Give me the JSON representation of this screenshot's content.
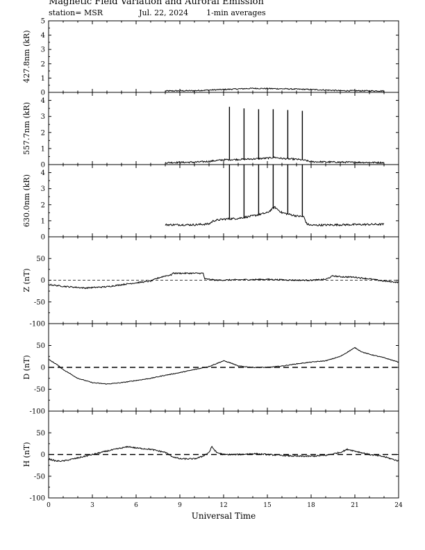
{
  "header": {
    "title": "Magnetic Field Variation and Auroral Emission",
    "station": "station= MSR",
    "date": "Jul.  22, 2024",
    "averaging": "1-min averages"
  },
  "colors": {
    "line": "#000000",
    "background": "#ffffff"
  },
  "chart_data": [
    {
      "type": "line",
      "ylabel": "427.8nm (kR)",
      "ylim": [
        0,
        5
      ],
      "yticks": [
        0,
        1,
        2,
        3,
        4,
        5
      ],
      "xlim": [
        0,
        24
      ],
      "series": [
        {
          "x": [
            8,
            10,
            12,
            14,
            16,
            18,
            20,
            23
          ],
          "y": [
            0.1,
            0.12,
            0.2,
            0.28,
            0.25,
            0.2,
            0.12,
            0.1
          ]
        }
      ],
      "noise": 0.04,
      "spikes": []
    },
    {
      "type": "line",
      "ylabel": "557.7nm (kR)",
      "ylim": [
        0,
        4.5
      ],
      "yticks": [
        0,
        1,
        2,
        3,
        4
      ],
      "xlim": [
        0,
        24
      ],
      "series": [
        {
          "x": [
            8,
            10,
            11,
            12,
            13,
            14,
            15,
            15.5,
            16,
            17,
            17.5,
            18,
            20,
            23
          ],
          "y": [
            0.12,
            0.15,
            0.2,
            0.3,
            0.32,
            0.35,
            0.4,
            0.45,
            0.38,
            0.33,
            0.28,
            0.18,
            0.15,
            0.12
          ]
        }
      ],
      "noise": 0.05,
      "spikes": [
        {
          "x": 12.4,
          "y": 3.6
        },
        {
          "x": 13.4,
          "y": 3.5
        },
        {
          "x": 14.4,
          "y": 3.45
        },
        {
          "x": 15.4,
          "y": 3.45
        },
        {
          "x": 16.4,
          "y": 3.4
        },
        {
          "x": 17.4,
          "y": 3.35
        }
      ]
    },
    {
      "type": "line",
      "ylabel": "630.0nm (kR)",
      "ylim": [
        0,
        4.5
      ],
      "yticks": [
        0,
        1,
        2,
        3,
        4
      ],
      "xlim": [
        0,
        24
      ],
      "series": [
        {
          "x": [
            8,
            10,
            11,
            11.3,
            12,
            13,
            14,
            15,
            15.5,
            16,
            17,
            17.5,
            17.7,
            18,
            20,
            23
          ],
          "y": [
            0.75,
            0.75,
            0.8,
            1.0,
            1.1,
            1.15,
            1.3,
            1.5,
            1.85,
            1.5,
            1.3,
            1.25,
            0.8,
            0.72,
            0.75,
            0.78
          ]
        }
      ],
      "noise": 0.06,
      "spikes": [
        {
          "x": 12.4,
          "y": 4.5
        },
        {
          "x": 13.4,
          "y": 4.5
        },
        {
          "x": 14.4,
          "y": 4.5
        },
        {
          "x": 15.4,
          "y": 4.5
        },
        {
          "x": 16.4,
          "y": 4.5
        },
        {
          "x": 17.4,
          "y": 4.5
        }
      ]
    },
    {
      "type": "line",
      "ylabel": "Z (nT)",
      "ylim": [
        -100,
        100
      ],
      "yticks": [
        -100,
        -50,
        0,
        50
      ],
      "xlim": [
        0,
        24
      ],
      "zero_line": "dashed-thin",
      "series": [
        {
          "x": [
            0,
            1,
            2.5,
            4,
            5.5,
            7,
            7.5,
            8,
            8.4,
            8.5,
            9,
            10.6,
            10.7,
            11,
            11.5,
            13,
            15,
            17,
            18,
            19,
            19.5,
            20,
            21,
            22,
            23,
            24
          ],
          "y": [
            -10,
            -14,
            -18,
            -15,
            -8,
            -2,
            5,
            10,
            12,
            16,
            16,
            16,
            3,
            2,
            0,
            1,
            2,
            0,
            0,
            2,
            10,
            8,
            7,
            3,
            -2,
            -5
          ]
        }
      ],
      "noise": 1.5,
      "spikes": []
    },
    {
      "type": "line",
      "ylabel": "D (nT)",
      "ylim": [
        -100,
        100
      ],
      "yticks": [
        -100,
        -50,
        0,
        50
      ],
      "xlim": [
        0,
        24
      ],
      "zero_line": "dashed-thick",
      "series": [
        {
          "x": [
            0,
            0.5,
            1,
            1.5,
            2,
            3,
            4,
            5,
            6,
            7,
            8,
            9,
            10,
            11,
            12,
            12.5,
            13,
            14,
            15,
            16,
            17,
            18,
            19,
            20,
            20.5,
            21,
            21.5,
            22,
            23,
            24
          ],
          "y": [
            18,
            8,
            -5,
            -15,
            -25,
            -35,
            -38,
            -35,
            -30,
            -25,
            -18,
            -12,
            -5,
            2,
            15,
            10,
            3,
            0,
            0,
            3,
            8,
            12,
            15,
            25,
            35,
            45,
            35,
            30,
            22,
            12
          ]
        }
      ],
      "noise": 0.8,
      "spikes": []
    },
    {
      "type": "line",
      "ylabel": "H (nT)",
      "ylim": [
        -100,
        100
      ],
      "yticks": [
        -100,
        -50,
        0,
        50
      ],
      "xlim": [
        0,
        24
      ],
      "xlabel": "Universal Time",
      "xticks": [
        0,
        3,
        6,
        9,
        12,
        15,
        18,
        21,
        24
      ],
      "zero_line": "dashed-thick",
      "series": [
        {
          "x": [
            0,
            0.5,
            1,
            2,
            3,
            4,
            5,
            5.5,
            6,
            7,
            8,
            8.5,
            9,
            10,
            10.5,
            11,
            11.2,
            11.5,
            12,
            13,
            14,
            15,
            16,
            17,
            18,
            19,
            20,
            20.5,
            21,
            22,
            23,
            24
          ],
          "y": [
            -10,
            -15,
            -15,
            -8,
            0,
            8,
            15,
            18,
            15,
            12,
            5,
            -5,
            -10,
            -10,
            -5,
            5,
            18,
            5,
            0,
            0,
            2,
            0,
            -2,
            -4,
            -4,
            -2,
            5,
            12,
            8,
            0,
            -5,
            -15
          ]
        }
      ],
      "noise": 1.5,
      "spikes": []
    }
  ]
}
